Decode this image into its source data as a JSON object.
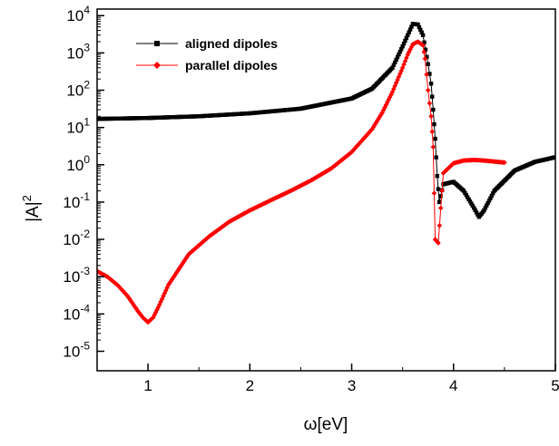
{
  "chart_data": {
    "type": "scatter",
    "title": "",
    "xlabel": "ω[eV]",
    "ylabel": "|A|",
    "ylabel_superscript": "2",
    "xlim": [
      0.5,
      5
    ],
    "ylim": [
      3e-06,
      15000.0
    ],
    "yscale": "log",
    "x_ticks": [
      1,
      2,
      3,
      4,
      5
    ],
    "x_tick_labels": [
      "1",
      "2",
      "3",
      "4",
      "5"
    ],
    "y_tick_exponents": [
      -5,
      -4,
      -3,
      -2,
      -1,
      0,
      1,
      2,
      3,
      4
    ],
    "y_tick_base": "10",
    "grid": false,
    "legend_position": "top-left",
    "series": [
      {
        "name": "aligned dipoles",
        "color": "#000000",
        "marker": "square",
        "x": [
          0.5,
          1.0,
          1.5,
          2.0,
          2.5,
          3.0,
          3.2,
          3.4,
          3.5,
          3.6,
          3.65,
          3.7,
          3.75,
          3.78,
          3.8,
          3.82,
          3.84,
          3.86,
          3.9,
          4.0,
          4.1,
          4.2,
          4.25,
          4.3,
          4.4,
          4.6,
          4.8,
          5.0
        ],
        "y": [
          17,
          18,
          20,
          24,
          32,
          60,
          110,
          400,
          1500,
          6000,
          5800,
          3000,
          500,
          150,
          30,
          5,
          0.5,
          0.1,
          0.3,
          0.35,
          0.2,
          0.07,
          0.04,
          0.06,
          0.2,
          0.7,
          1.2,
          1.6
        ]
      },
      {
        "name": "parallel dipoles",
        "color": "#ff0000",
        "marker": "diamond",
        "x": [
          0.5,
          0.6,
          0.7,
          0.8,
          0.9,
          0.95,
          1.0,
          1.05,
          1.1,
          1.2,
          1.4,
          1.6,
          1.8,
          2.0,
          2.2,
          2.4,
          2.6,
          2.8,
          3.0,
          3.2,
          3.3,
          3.4,
          3.5,
          3.55,
          3.6,
          3.65,
          3.7,
          3.72,
          3.75,
          3.78,
          3.8,
          3.82,
          3.85,
          3.9,
          4.0,
          4.1,
          4.2,
          4.3,
          4.5
        ],
        "y": [
          0.0014,
          0.001,
          0.0006,
          0.0003,
          0.00012,
          8e-05,
          6e-05,
          8e-05,
          0.00015,
          0.0006,
          0.004,
          0.012,
          0.03,
          0.06,
          0.11,
          0.2,
          0.38,
          0.8,
          2.2,
          9,
          25,
          90,
          400,
          900,
          1700,
          2000,
          1600,
          700,
          100,
          20,
          3,
          0.01,
          0.008,
          0.6,
          1.1,
          1.3,
          1.35,
          1.3,
          1.15
        ]
      }
    ]
  }
}
